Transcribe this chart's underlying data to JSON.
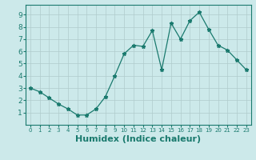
{
  "x": [
    0,
    1,
    2,
    3,
    4,
    5,
    6,
    7,
    8,
    9,
    10,
    11,
    12,
    13,
    14,
    15,
    16,
    17,
    18,
    19,
    20,
    21,
    22,
    23
  ],
  "y": [
    3.0,
    2.7,
    2.2,
    1.7,
    1.3,
    0.8,
    0.8,
    1.3,
    2.3,
    4.0,
    5.8,
    6.5,
    6.4,
    7.7,
    4.5,
    8.3,
    7.0,
    8.5,
    9.2,
    7.8,
    6.5,
    6.1,
    5.3,
    4.5
  ],
  "line_color": "#1a7a6e",
  "marker": "*",
  "marker_size": 3.5,
  "bg_color": "#cce9ea",
  "grid_color": "#b0cccc",
  "xlabel": "Humidex (Indice chaleur)",
  "xlabel_fontsize": 8,
  "xlim": [
    -0.5,
    23.5
  ],
  "ylim": [
    0,
    9.8
  ],
  "yticks": [
    1,
    2,
    3,
    4,
    5,
    6,
    7,
    8,
    9
  ],
  "xticks": [
    0,
    1,
    2,
    3,
    4,
    5,
    6,
    7,
    8,
    9,
    10,
    11,
    12,
    13,
    14,
    15,
    16,
    17,
    18,
    19,
    20,
    21,
    22,
    23
  ],
  "tick_color": "#1a7a6e",
  "spine_color": "#1a7a6e"
}
